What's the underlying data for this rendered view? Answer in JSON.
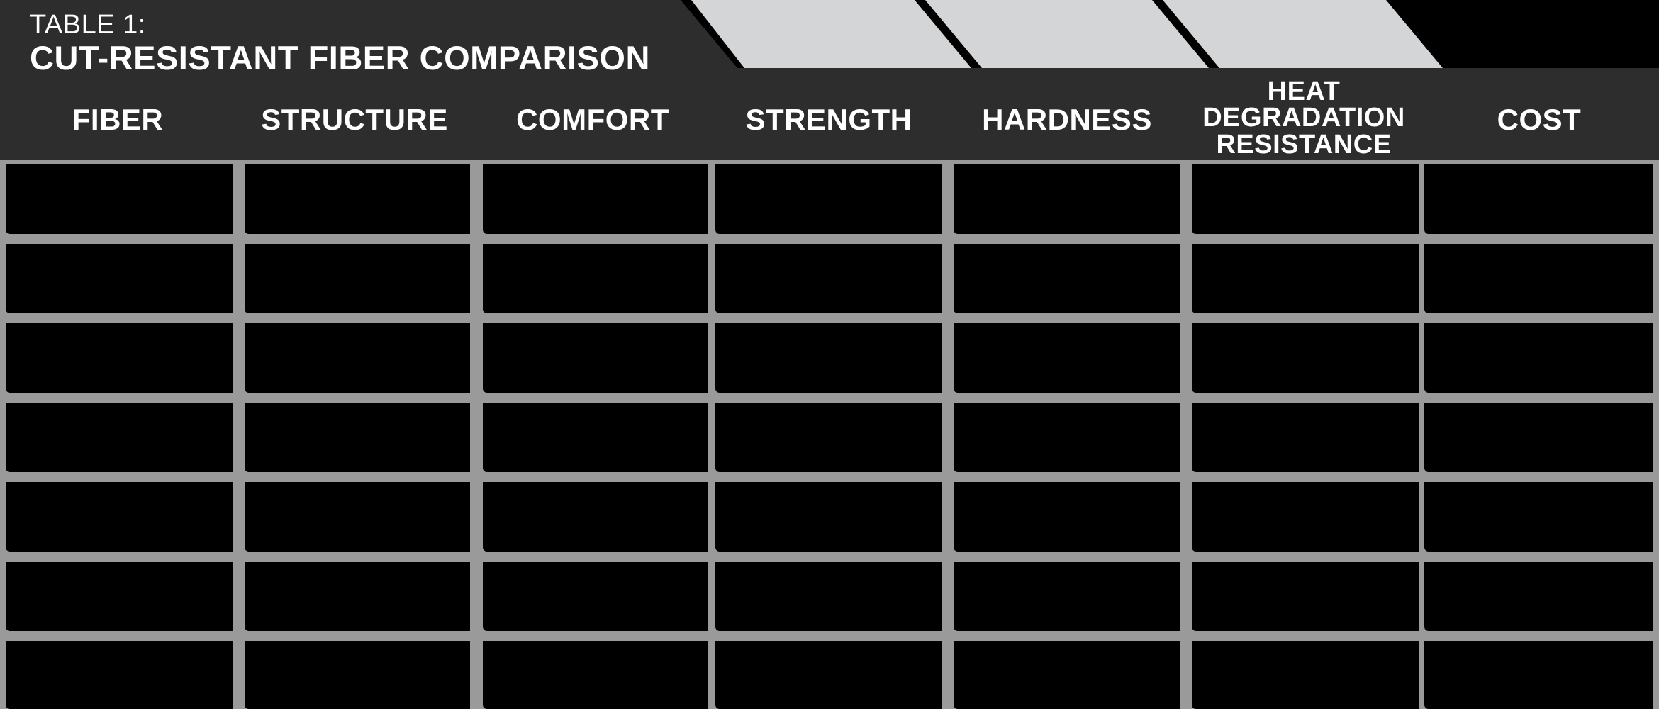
{
  "table": {
    "label": "TABLE 1:",
    "title": "CUT-RESISTANT FIBER COMPARISON"
  },
  "columns": [
    {
      "label": "FIBER"
    },
    {
      "label": "STRUCTURE"
    },
    {
      "label": "COMFORT"
    },
    {
      "label": "STRENGTH"
    },
    {
      "label": "HARDNESS"
    },
    {
      "label": "HEAT\nDEGRADATION\nRESISTANCE"
    },
    {
      "label": "COST"
    }
  ],
  "rows": 7,
  "colors": {
    "header_bg": "#2d2d2d",
    "tab_fill": "#d4d5d7",
    "grid_line": "#9a9a9a",
    "cell_bg": "#000000",
    "text": "#ffffff"
  }
}
